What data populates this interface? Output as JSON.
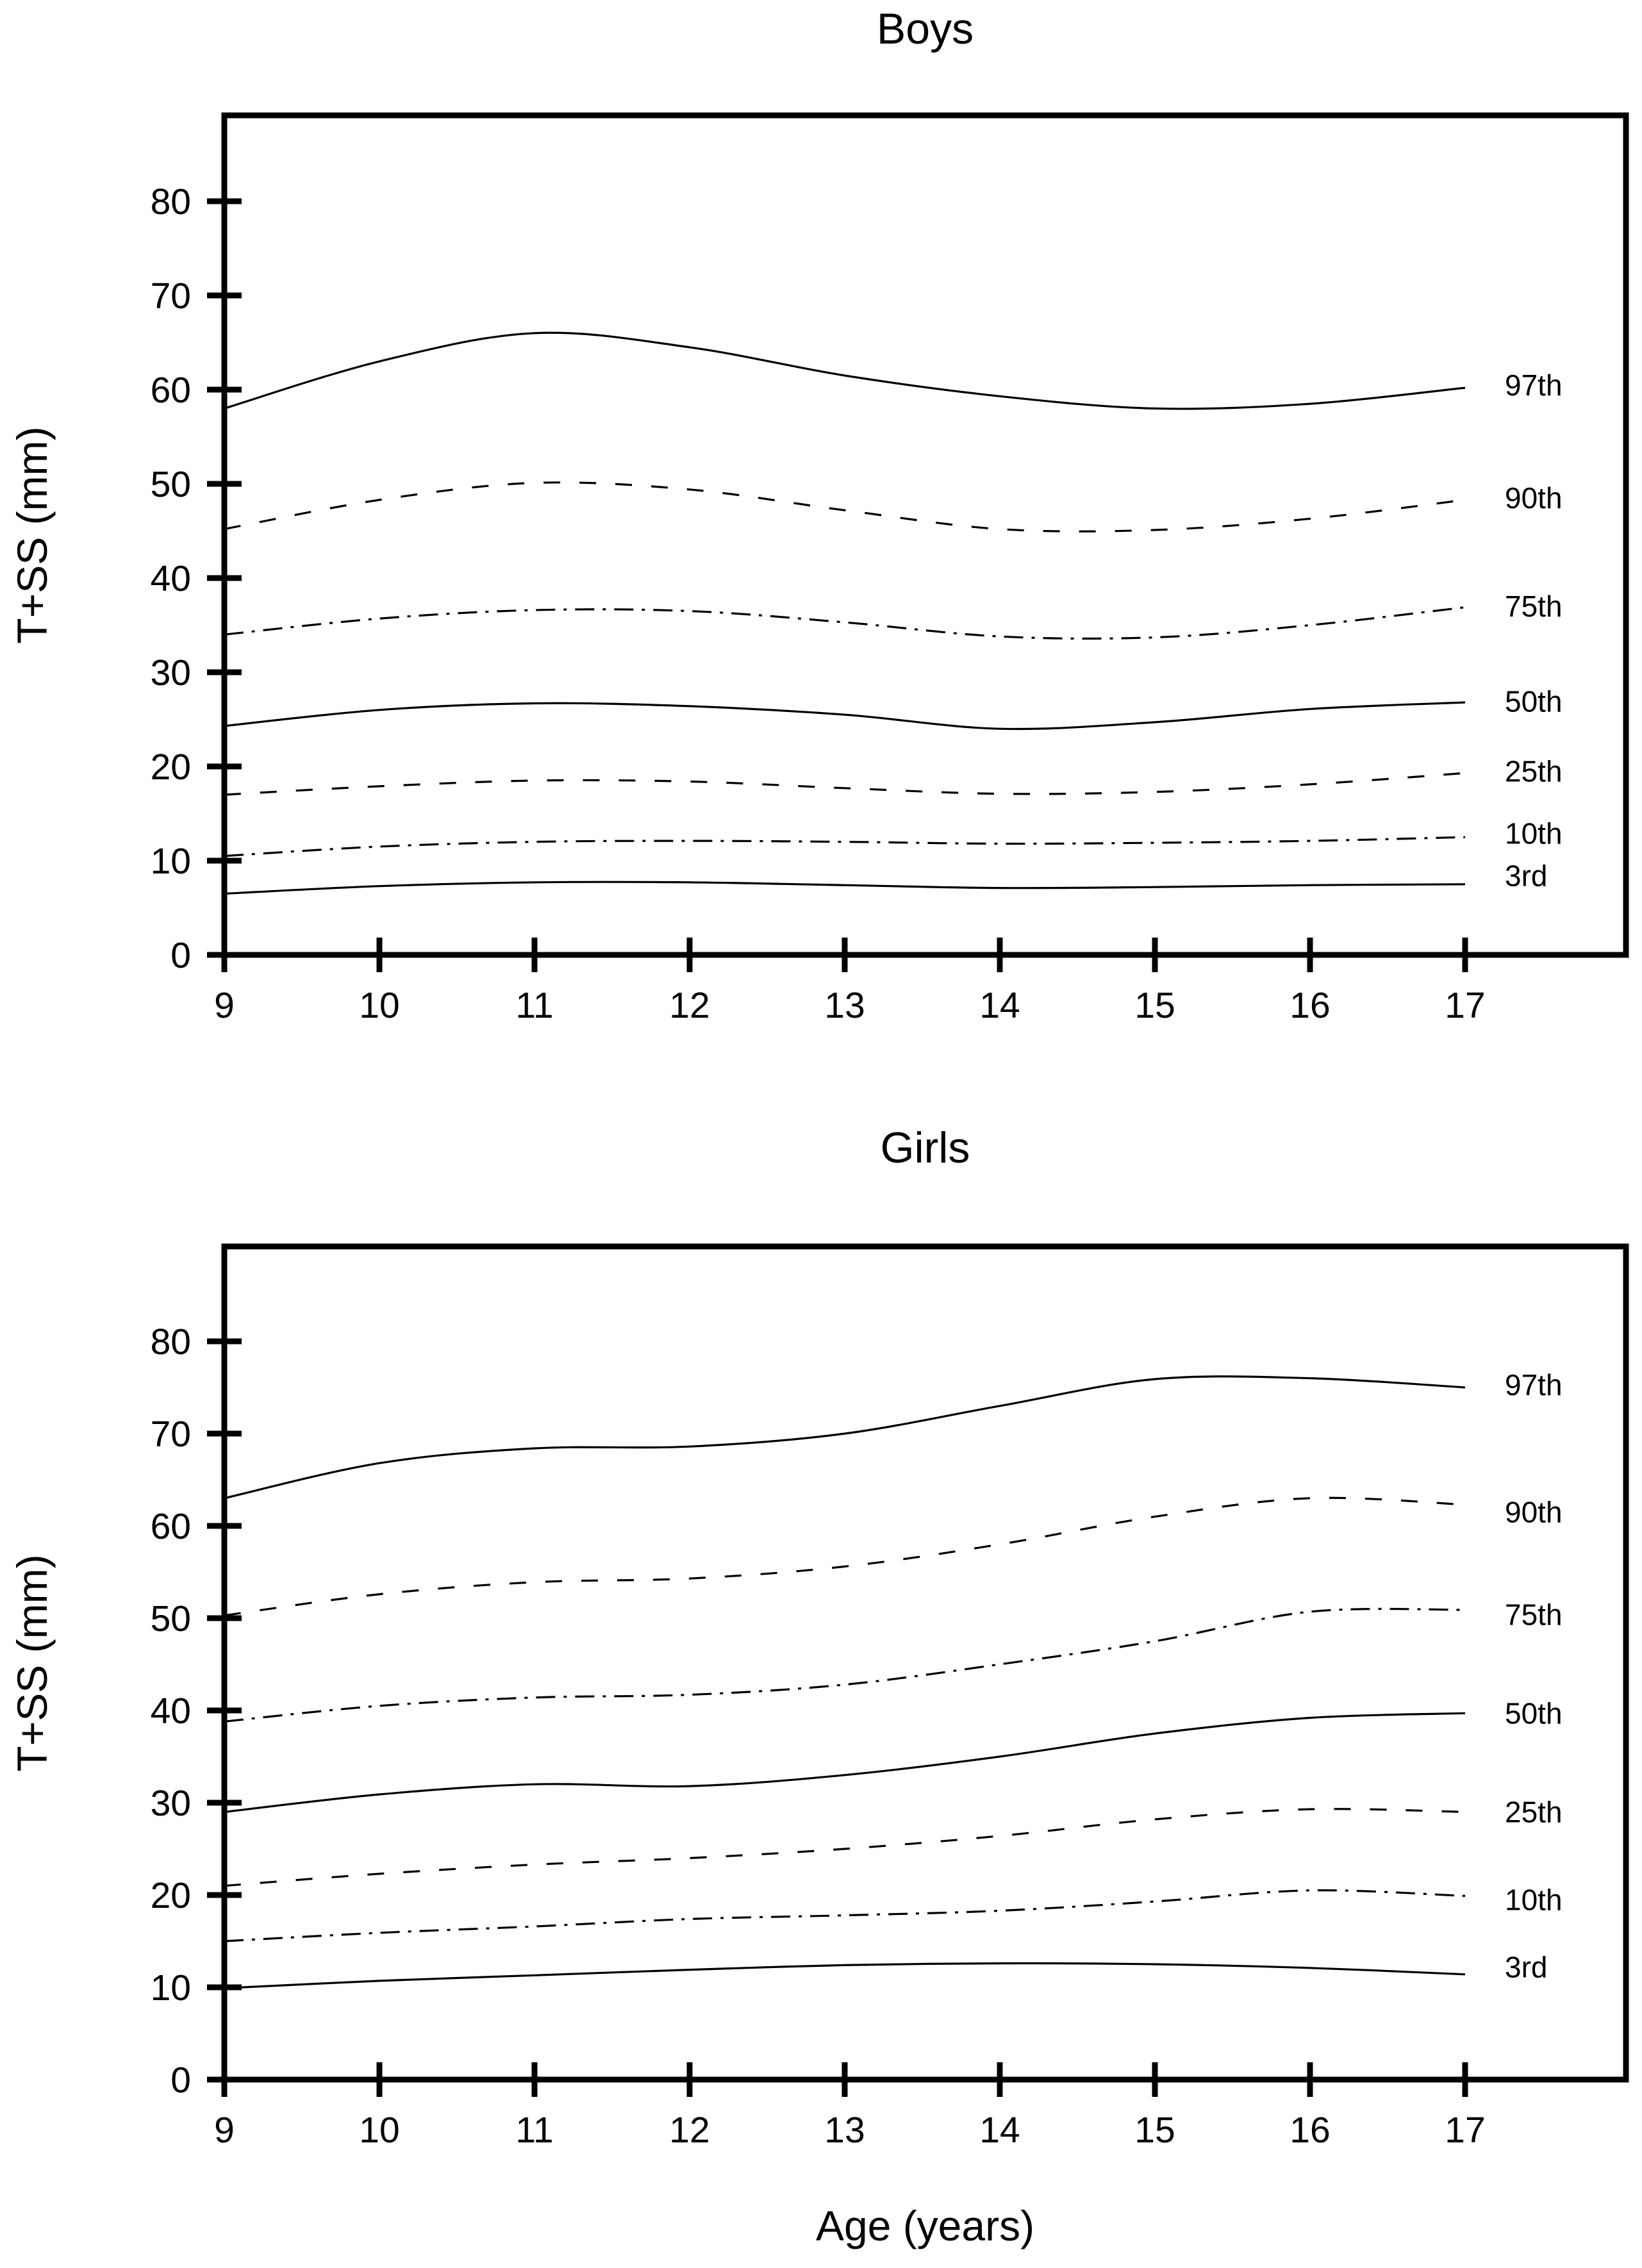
{
  "shared": {
    "xlabel": "Age (years)",
    "line_color": "#000000",
    "background": "#ffffff"
  },
  "chart_data": [
    {
      "type": "line",
      "title": "Boys",
      "ylabel": "T+SS (mm)",
      "xlabel": "Age (years)",
      "x": [
        9,
        10,
        11,
        12,
        13,
        14,
        15,
        16,
        17
      ],
      "x_ticks": [
        9,
        10,
        11,
        12,
        13,
        14,
        15,
        16,
        17
      ],
      "y_ticks": [
        0,
        10,
        20,
        30,
        40,
        50,
        60,
        70,
        80
      ],
      "xlim": [
        9,
        18.04
      ],
      "ylim": [
        0,
        89
      ],
      "grid": false,
      "legend_position": "inside-right",
      "series": [
        {
          "name": "97th",
          "style": "solid",
          "values": [
            58,
            63,
            66,
            64.5,
            61.5,
            59.3,
            58,
            58.5,
            60.2
          ],
          "label_value": 60.5
        },
        {
          "name": "90th",
          "style": "dashed",
          "values": [
            45.2,
            48.3,
            50.1,
            49.4,
            47.2,
            45.2,
            45.1,
            46.3,
            48.3
          ],
          "label_value": 48.5
        },
        {
          "name": "75th",
          "style": "dashdot",
          "values": [
            34,
            35.7,
            36.6,
            36.5,
            35.3,
            33.8,
            33.7,
            35,
            36.9
          ],
          "label_value": 37
        },
        {
          "name": "50th",
          "style": "solid",
          "values": [
            24.3,
            26,
            26.7,
            26.4,
            25.5,
            24,
            24.7,
            26.1,
            26.8
          ],
          "label_value": 26.9
        },
        {
          "name": "25th",
          "style": "dashed",
          "values": [
            17,
            17.9,
            18.5,
            18.4,
            17.7,
            17.1,
            17.3,
            18.1,
            19.3
          ],
          "label_value": 19.5
        },
        {
          "name": "10th",
          "style": "dashdot",
          "values": [
            10.5,
            11.5,
            12,
            12.1,
            12,
            11.8,
            11.9,
            12.1,
            12.5
          ],
          "label_value": 12.9
        },
        {
          "name": "3rd",
          "style": "solid",
          "values": [
            6.5,
            7.3,
            7.7,
            7.7,
            7.4,
            7.1,
            7.2,
            7.4,
            7.5
          ],
          "label_value": 8.4
        }
      ]
    },
    {
      "type": "line",
      "title": "Girls",
      "ylabel": "T+SS (mm)",
      "xlabel": "Age (years)",
      "x": [
        9,
        10,
        11,
        12,
        13,
        14,
        15,
        16,
        17
      ],
      "x_ticks": [
        9,
        10,
        11,
        12,
        13,
        14,
        15,
        16,
        17
      ],
      "y_ticks": [
        0,
        10,
        20,
        30,
        40,
        50,
        60,
        70,
        80
      ],
      "xlim": [
        9,
        18.04
      ],
      "ylim": [
        0,
        89
      ],
      "grid": false,
      "legend_position": "inside-right",
      "series": [
        {
          "name": "97th",
          "style": "solid",
          "values": [
            63,
            66.8,
            68.4,
            68.6,
            70,
            73,
            75.9,
            76,
            75
          ],
          "label_value": 75.3
        },
        {
          "name": "90th",
          "style": "dashed",
          "values": [
            50.3,
            52.6,
            53.9,
            54.3,
            55.6,
            58,
            61,
            63,
            62.3
          ],
          "label_value": 61.5
        },
        {
          "name": "75th",
          "style": "dashdot",
          "values": [
            38.8,
            40.5,
            41.4,
            41.7,
            42.8,
            45,
            47.5,
            50.7,
            50.9
          ],
          "label_value": 50.4
        },
        {
          "name": "50th",
          "style": "solid",
          "values": [
            29,
            30.9,
            32,
            31.8,
            33,
            35,
            37.5,
            39.2,
            39.7
          ],
          "label_value": 39.7
        },
        {
          "name": "25th",
          "style": "dashed",
          "values": [
            21,
            22.3,
            23.3,
            24,
            25,
            26.4,
            28.2,
            29.3,
            29
          ],
          "label_value": 29
        },
        {
          "name": "10th",
          "style": "dashdot",
          "values": [
            15,
            15.9,
            16.6,
            17.4,
            17.8,
            18.3,
            19.3,
            20.5,
            19.9
          ],
          "label_value": 19.5
        },
        {
          "name": "3rd",
          "style": "solid",
          "values": [
            9.9,
            10.7,
            11.3,
            11.9,
            12.4,
            12.6,
            12.5,
            12.1,
            11.4
          ],
          "label_value": 12.2
        }
      ]
    }
  ]
}
